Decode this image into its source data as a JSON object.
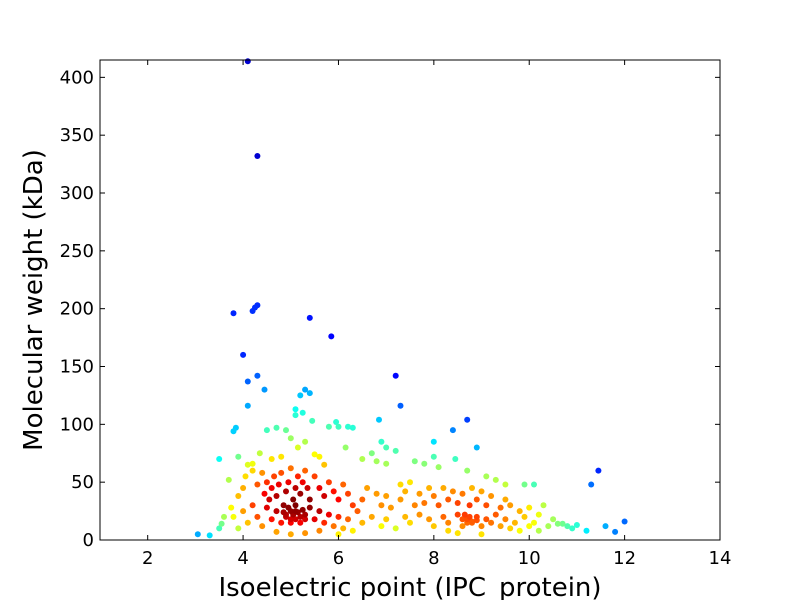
{
  "chart_data": {
    "type": "scatter",
    "title": "",
    "xlabel": "Isoelectric point (IPC_protein)",
    "ylabel": "Molecular weight (kDa)",
    "xlim": [
      1,
      14
    ],
    "ylim": [
      0,
      415
    ],
    "xticks": [
      2,
      4,
      6,
      8,
      10,
      12,
      14
    ],
    "yticks": [
      0,
      50,
      100,
      150,
      200,
      250,
      300,
      350,
      400
    ],
    "grid": false,
    "legend": "none",
    "color_encoding": "point density (jet colormap: blue = low, red = high)",
    "colormap": [
      "#00008f",
      "#0000ff",
      "#00ffff",
      "#ffff00",
      "#ff0000",
      "#800000"
    ],
    "points": [
      [
        4.1,
        414
      ],
      [
        4.3,
        332
      ],
      [
        3.8,
        196
      ],
      [
        4.2,
        198
      ],
      [
        4.25,
        201
      ],
      [
        4.3,
        203
      ],
      [
        5.4,
        192
      ],
      [
        5.85,
        176
      ],
      [
        4.0,
        160
      ],
      [
        4.1,
        137
      ],
      [
        4.3,
        142
      ],
      [
        4.45,
        130
      ],
      [
        7.2,
        142
      ],
      [
        5.3,
        130
      ],
      [
        5.2,
        125
      ],
      [
        5.4,
        127
      ],
      [
        4.1,
        116
      ],
      [
        5.1,
        113
      ],
      [
        5.25,
        110
      ],
      [
        7.3,
        116
      ],
      [
        3.85,
        97
      ],
      [
        3.8,
        94
      ],
      [
        4.5,
        95
      ],
      [
        4.7,
        97
      ],
      [
        4.9,
        95
      ],
      [
        5.0,
        88
      ],
      [
        5.1,
        108
      ],
      [
        5.45,
        103
      ],
      [
        5.8,
        98
      ],
      [
        5.95,
        102
      ],
      [
        6.0,
        98
      ],
      [
        6.2,
        98
      ],
      [
        6.3,
        97
      ],
      [
        6.15,
        80
      ],
      [
        6.85,
        104
      ],
      [
        6.9,
        85
      ],
      [
        7.0,
        80
      ],
      [
        7.2,
        77
      ],
      [
        8.0,
        85
      ],
      [
        8.4,
        95
      ],
      [
        8.7,
        104
      ],
      [
        8.9,
        80
      ],
      [
        3.5,
        70
      ],
      [
        3.9,
        72
      ],
      [
        4.1,
        65
      ],
      [
        4.2,
        66
      ],
      [
        4.35,
        75
      ],
      [
        4.6,
        70
      ],
      [
        4.8,
        72
      ],
      [
        5.15,
        80
      ],
      [
        5.5,
        74
      ],
      [
        5.3,
        85
      ],
      [
        5.6,
        72
      ],
      [
        5.7,
        65
      ],
      [
        6.5,
        70
      ],
      [
        6.7,
        75
      ],
      [
        6.8,
        68
      ],
      [
        7.0,
        66
      ],
      [
        7.6,
        68
      ],
      [
        7.8,
        66
      ],
      [
        8.0,
        72
      ],
      [
        8.1,
        63
      ],
      [
        8.45,
        70
      ],
      [
        8.7,
        60
      ],
      [
        7.5,
        50
      ],
      [
        7.3,
        48
      ],
      [
        9.1,
        55
      ],
      [
        9.3,
        52
      ],
      [
        9.5,
        48
      ],
      [
        9.9,
        48
      ],
      [
        10.1,
        48
      ],
      [
        10.3,
        30
      ],
      [
        10.6,
        14
      ],
      [
        10.8,
        12
      ],
      [
        11.0,
        13
      ],
      [
        11.3,
        48
      ],
      [
        11.45,
        60
      ],
      [
        11.6,
        12
      ],
      [
        11.8,
        7
      ],
      [
        12.0,
        16
      ],
      [
        11.2,
        8
      ],
      [
        10.9,
        10
      ],
      [
        3.05,
        5
      ],
      [
        3.3,
        4
      ],
      [
        3.5,
        10
      ],
      [
        3.55,
        14
      ],
      [
        3.6,
        20
      ],
      [
        3.7,
        52
      ],
      [
        3.75,
        28
      ],
      [
        3.9,
        38
      ],
      [
        4.0,
        45
      ],
      [
        4.05,
        55
      ],
      [
        4.2,
        60
      ],
      [
        4.3,
        48
      ],
      [
        4.4,
        58
      ],
      [
        4.45,
        40
      ],
      [
        4.5,
        50
      ],
      [
        4.55,
        35
      ],
      [
        4.6,
        45
      ],
      [
        4.65,
        55
      ],
      [
        4.7,
        38
      ],
      [
        4.75,
        48
      ],
      [
        4.8,
        58
      ],
      [
        4.85,
        30
      ],
      [
        4.9,
        42
      ],
      [
        4.95,
        50
      ],
      [
        5.0,
        62
      ],
      [
        5.05,
        35
      ],
      [
        5.1,
        45
      ],
      [
        5.15,
        55
      ],
      [
        5.2,
        40
      ],
      [
        5.25,
        50
      ],
      [
        5.3,
        60
      ],
      [
        5.35,
        45
      ],
      [
        5.4,
        35
      ],
      [
        5.5,
        55
      ],
      [
        5.6,
        45
      ],
      [
        5.7,
        38
      ],
      [
        5.8,
        50
      ],
      [
        5.9,
        42
      ],
      [
        6.0,
        35
      ],
      [
        6.1,
        48
      ],
      [
        6.2,
        40
      ],
      [
        6.3,
        30
      ],
      [
        6.4,
        25
      ],
      [
        6.5,
        35
      ],
      [
        6.6,
        45
      ],
      [
        6.8,
        40
      ],
      [
        6.9,
        30
      ],
      [
        7.0,
        38
      ],
      [
        7.1,
        28
      ],
      [
        7.3,
        35
      ],
      [
        7.4,
        42
      ],
      [
        7.6,
        30
      ],
      [
        7.7,
        40
      ],
      [
        7.8,
        32
      ],
      [
        7.9,
        45
      ],
      [
        8.0,
        38
      ],
      [
        8.1,
        30
      ],
      [
        8.2,
        45
      ],
      [
        8.3,
        35
      ],
      [
        8.4,
        42
      ],
      [
        8.5,
        32
      ],
      [
        8.6,
        40
      ],
      [
        8.75,
        30
      ],
      [
        8.8,
        45
      ],
      [
        8.9,
        35
      ],
      [
        9.0,
        42
      ],
      [
        9.1,
        30
      ],
      [
        9.2,
        38
      ],
      [
        9.4,
        28
      ],
      [
        9.5,
        35
      ],
      [
        9.6,
        30
      ],
      [
        9.8,
        25
      ],
      [
        9.9,
        20
      ],
      [
        10.0,
        28
      ],
      [
        10.1,
        15
      ],
      [
        10.2,
        22
      ],
      [
        10.4,
        12
      ],
      [
        10.5,
        18
      ],
      [
        10.7,
        14
      ],
      [
        3.8,
        20
      ],
      [
        3.9,
        10
      ],
      [
        4.0,
        25
      ],
      [
        4.1,
        15
      ],
      [
        4.2,
        30
      ],
      [
        4.3,
        20
      ],
      [
        4.4,
        12
      ],
      [
        4.5,
        28
      ],
      [
        4.6,
        18
      ],
      [
        4.7,
        25
      ],
      [
        4.8,
        15
      ],
      [
        4.9,
        22
      ],
      [
        5.0,
        18
      ],
      [
        5.1,
        25
      ],
      [
        5.2,
        15
      ],
      [
        5.3,
        22
      ],
      [
        5.4,
        28
      ],
      [
        5.5,
        18
      ],
      [
        5.6,
        25
      ],
      [
        5.7,
        15
      ],
      [
        5.8,
        22
      ],
      [
        5.9,
        12
      ],
      [
        6.0,
        20
      ],
      [
        6.1,
        10
      ],
      [
        6.2,
        18
      ],
      [
        6.3,
        8
      ],
      [
        6.5,
        15
      ],
      [
        6.7,
        20
      ],
      [
        6.9,
        12
      ],
      [
        7.0,
        18
      ],
      [
        7.2,
        10
      ],
      [
        7.4,
        20
      ],
      [
        7.5,
        15
      ],
      [
        7.7,
        22
      ],
      [
        7.9,
        18
      ],
      [
        8.0,
        12
      ],
      [
        8.2,
        20
      ],
      [
        8.3,
        15
      ],
      [
        8.5,
        22
      ],
      [
        8.6,
        12
      ],
      [
        8.7,
        18
      ],
      [
        8.8,
        15
      ],
      [
        8.9,
        20
      ],
      [
        9.0,
        12
      ],
      [
        9.1,
        18
      ],
      [
        9.2,
        15
      ],
      [
        9.3,
        22
      ],
      [
        9.4,
        12
      ],
      [
        9.5,
        18
      ],
      [
        9.6,
        10
      ],
      [
        9.7,
        15
      ],
      [
        9.8,
        8
      ],
      [
        10.0,
        12
      ],
      [
        10.2,
        8
      ],
      [
        4.9,
        20
      ],
      [
        5.0,
        25
      ],
      [
        5.05,
        22
      ],
      [
        5.1,
        18
      ],
      [
        5.15,
        24
      ],
      [
        5.2,
        20
      ],
      [
        4.95,
        28
      ],
      [
        5.0,
        15
      ],
      [
        5.1,
        30
      ],
      [
        5.25,
        26
      ],
      [
        4.85,
        24
      ],
      [
        5.3,
        18
      ],
      [
        8.6,
        18
      ],
      [
        8.7,
        15
      ],
      [
        8.75,
        20
      ],
      [
        8.8,
        16
      ],
      [
        8.65,
        22
      ],
      [
        8.9,
        17
      ],
      [
        5.0,
        5
      ],
      [
        5.3,
        6
      ],
      [
        5.6,
        8
      ],
      [
        4.7,
        7
      ],
      [
        6.0,
        5
      ],
      [
        8.5,
        6
      ],
      [
        9.0,
        5
      ],
      [
        8.3,
        8
      ]
    ]
  }
}
